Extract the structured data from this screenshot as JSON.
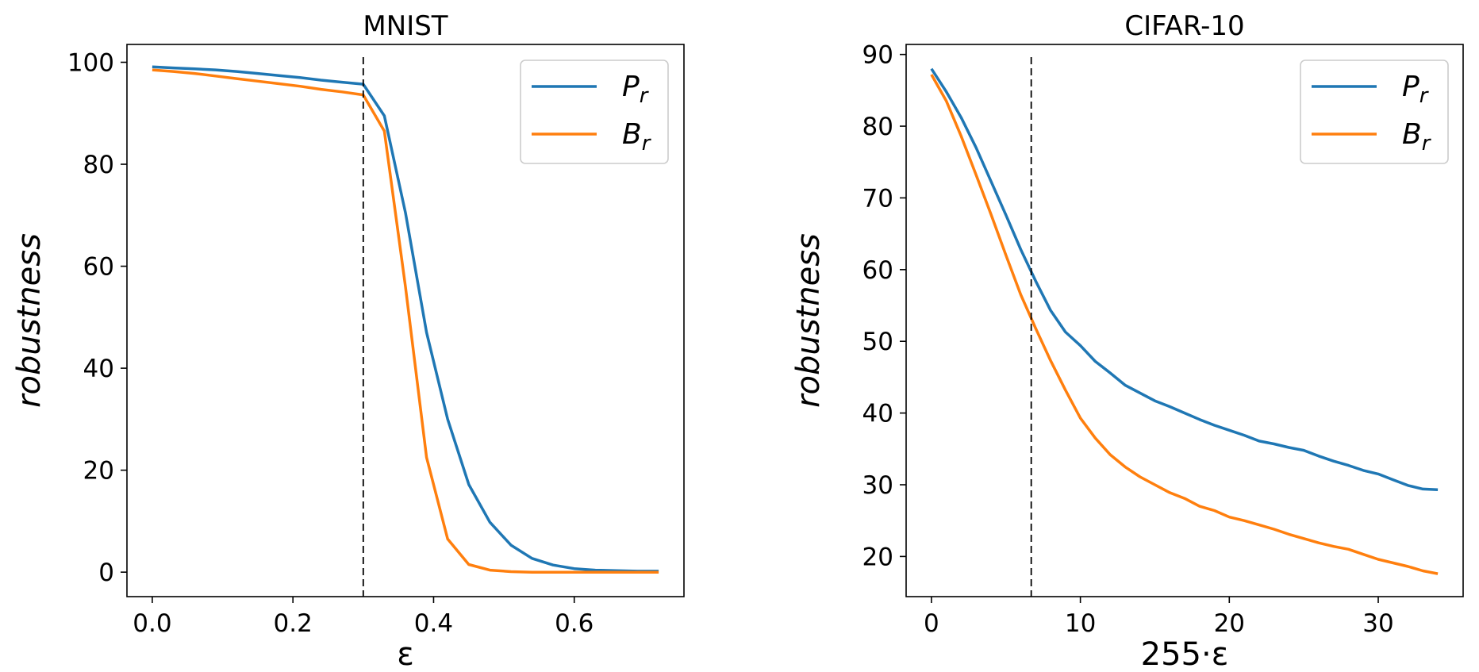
{
  "chart_data": [
    {
      "type": "line",
      "title": "MNIST",
      "xlabel": "ε",
      "ylabel": "robustness",
      "xlim": [
        -0.036,
        0.756
      ],
      "ylim": [
        -4.8,
        103.5
      ],
      "xticks": [
        0.0,
        0.2,
        0.4,
        0.6
      ],
      "xtick_labels": [
        "0.0",
        "0.2",
        "0.4",
        "0.6"
      ],
      "yticks": [
        0,
        20,
        40,
        60,
        80,
        100
      ],
      "ytick_labels": [
        "0",
        "20",
        "40",
        "60",
        "80",
        "100"
      ],
      "vline": 0.3,
      "grid": false,
      "legend_position": "top-right",
      "series": [
        {
          "name": "P",
          "subscript": "r",
          "color": "#1f77b4",
          "x": [
            0.0,
            0.03,
            0.06,
            0.09,
            0.12,
            0.15,
            0.18,
            0.21,
            0.24,
            0.27,
            0.3,
            0.33,
            0.36,
            0.39,
            0.42,
            0.45,
            0.48,
            0.51,
            0.54,
            0.57,
            0.6,
            0.63,
            0.66,
            0.69,
            0.72
          ],
          "y": [
            99.1,
            98.9,
            98.7,
            98.5,
            98.2,
            97.8,
            97.4,
            97.0,
            96.5,
            96.1,
            95.7,
            89.5,
            70.5,
            47.0,
            30.0,
            17.2,
            9.8,
            5.3,
            2.7,
            1.4,
            0.7,
            0.4,
            0.3,
            0.2,
            0.2
          ]
        },
        {
          "name": "B",
          "subscript": "r",
          "color": "#ff7f0e",
          "x": [
            0.0,
            0.03,
            0.06,
            0.09,
            0.12,
            0.15,
            0.18,
            0.21,
            0.24,
            0.27,
            0.3,
            0.33,
            0.36,
            0.39,
            0.42,
            0.45,
            0.48,
            0.51,
            0.54,
            0.57,
            0.6,
            0.63,
            0.66,
            0.69,
            0.72
          ],
          "y": [
            98.5,
            98.2,
            97.8,
            97.3,
            96.8,
            96.3,
            95.8,
            95.3,
            94.7,
            94.2,
            93.6,
            86.5,
            56.0,
            22.5,
            6.5,
            1.5,
            0.4,
            0.1,
            0.0,
            0.0,
            0.0,
            0.0,
            0.0,
            0.0,
            0.0
          ]
        }
      ]
    },
    {
      "type": "line",
      "title": "CIFAR-10",
      "xlabel": "255·ε",
      "ylabel": "robustness",
      "xlim": [
        -1.7,
        35.7
      ],
      "ylim": [
        14.4,
        91.4
      ],
      "xticks": [
        0,
        10,
        20,
        30
      ],
      "xtick_labels": [
        "0",
        "10",
        "20",
        "30"
      ],
      "yticks": [
        20,
        30,
        40,
        50,
        60,
        70,
        80,
        90
      ],
      "ytick_labels": [
        "20",
        "30",
        "40",
        "50",
        "60",
        "70",
        "80",
        "90"
      ],
      "vline": 6.7,
      "grid": false,
      "legend_position": "top-right",
      "series": [
        {
          "name": "P",
          "subscript": "r",
          "color": "#1f77b4",
          "x": [
            0,
            1,
            2,
            3,
            4,
            5,
            6,
            7,
            8,
            9,
            10,
            11,
            12,
            13,
            14,
            15,
            16,
            17,
            18,
            19,
            20,
            21,
            22,
            23,
            24,
            25,
            26,
            27,
            28,
            29,
            30,
            31,
            32,
            33,
            34
          ],
          "y": [
            88.0,
            84.8,
            81.2,
            77.0,
            72.3,
            67.6,
            62.8,
            58.4,
            54.3,
            51.3,
            49.4,
            47.2,
            45.6,
            43.9,
            42.8,
            41.7,
            40.9,
            40.0,
            39.1,
            38.3,
            37.6,
            36.9,
            36.1,
            35.7,
            35.2,
            34.8,
            34.0,
            33.3,
            32.7,
            32.0,
            31.5,
            30.7,
            29.9,
            29.4,
            29.3
          ]
        },
        {
          "name": "B",
          "subscript": "r",
          "color": "#ff7f0e",
          "x": [
            0,
            1,
            2,
            3,
            4,
            5,
            6,
            7,
            8,
            9,
            10,
            11,
            12,
            13,
            14,
            15,
            16,
            17,
            18,
            19,
            20,
            21,
            22,
            23,
            24,
            25,
            26,
            27,
            28,
            29,
            30,
            31,
            32,
            33,
            34
          ],
          "y": [
            87.2,
            83.5,
            78.6,
            73.2,
            67.7,
            62.0,
            56.5,
            51.8,
            47.3,
            43.2,
            39.3,
            36.5,
            34.2,
            32.5,
            31.1,
            30.0,
            28.9,
            28.1,
            27.0,
            26.4,
            25.5,
            25.0,
            24.4,
            23.8,
            23.1,
            22.5,
            21.9,
            21.4,
            21.0,
            20.3,
            19.6,
            19.1,
            18.6,
            18.0,
            17.6
          ]
        }
      ]
    }
  ]
}
